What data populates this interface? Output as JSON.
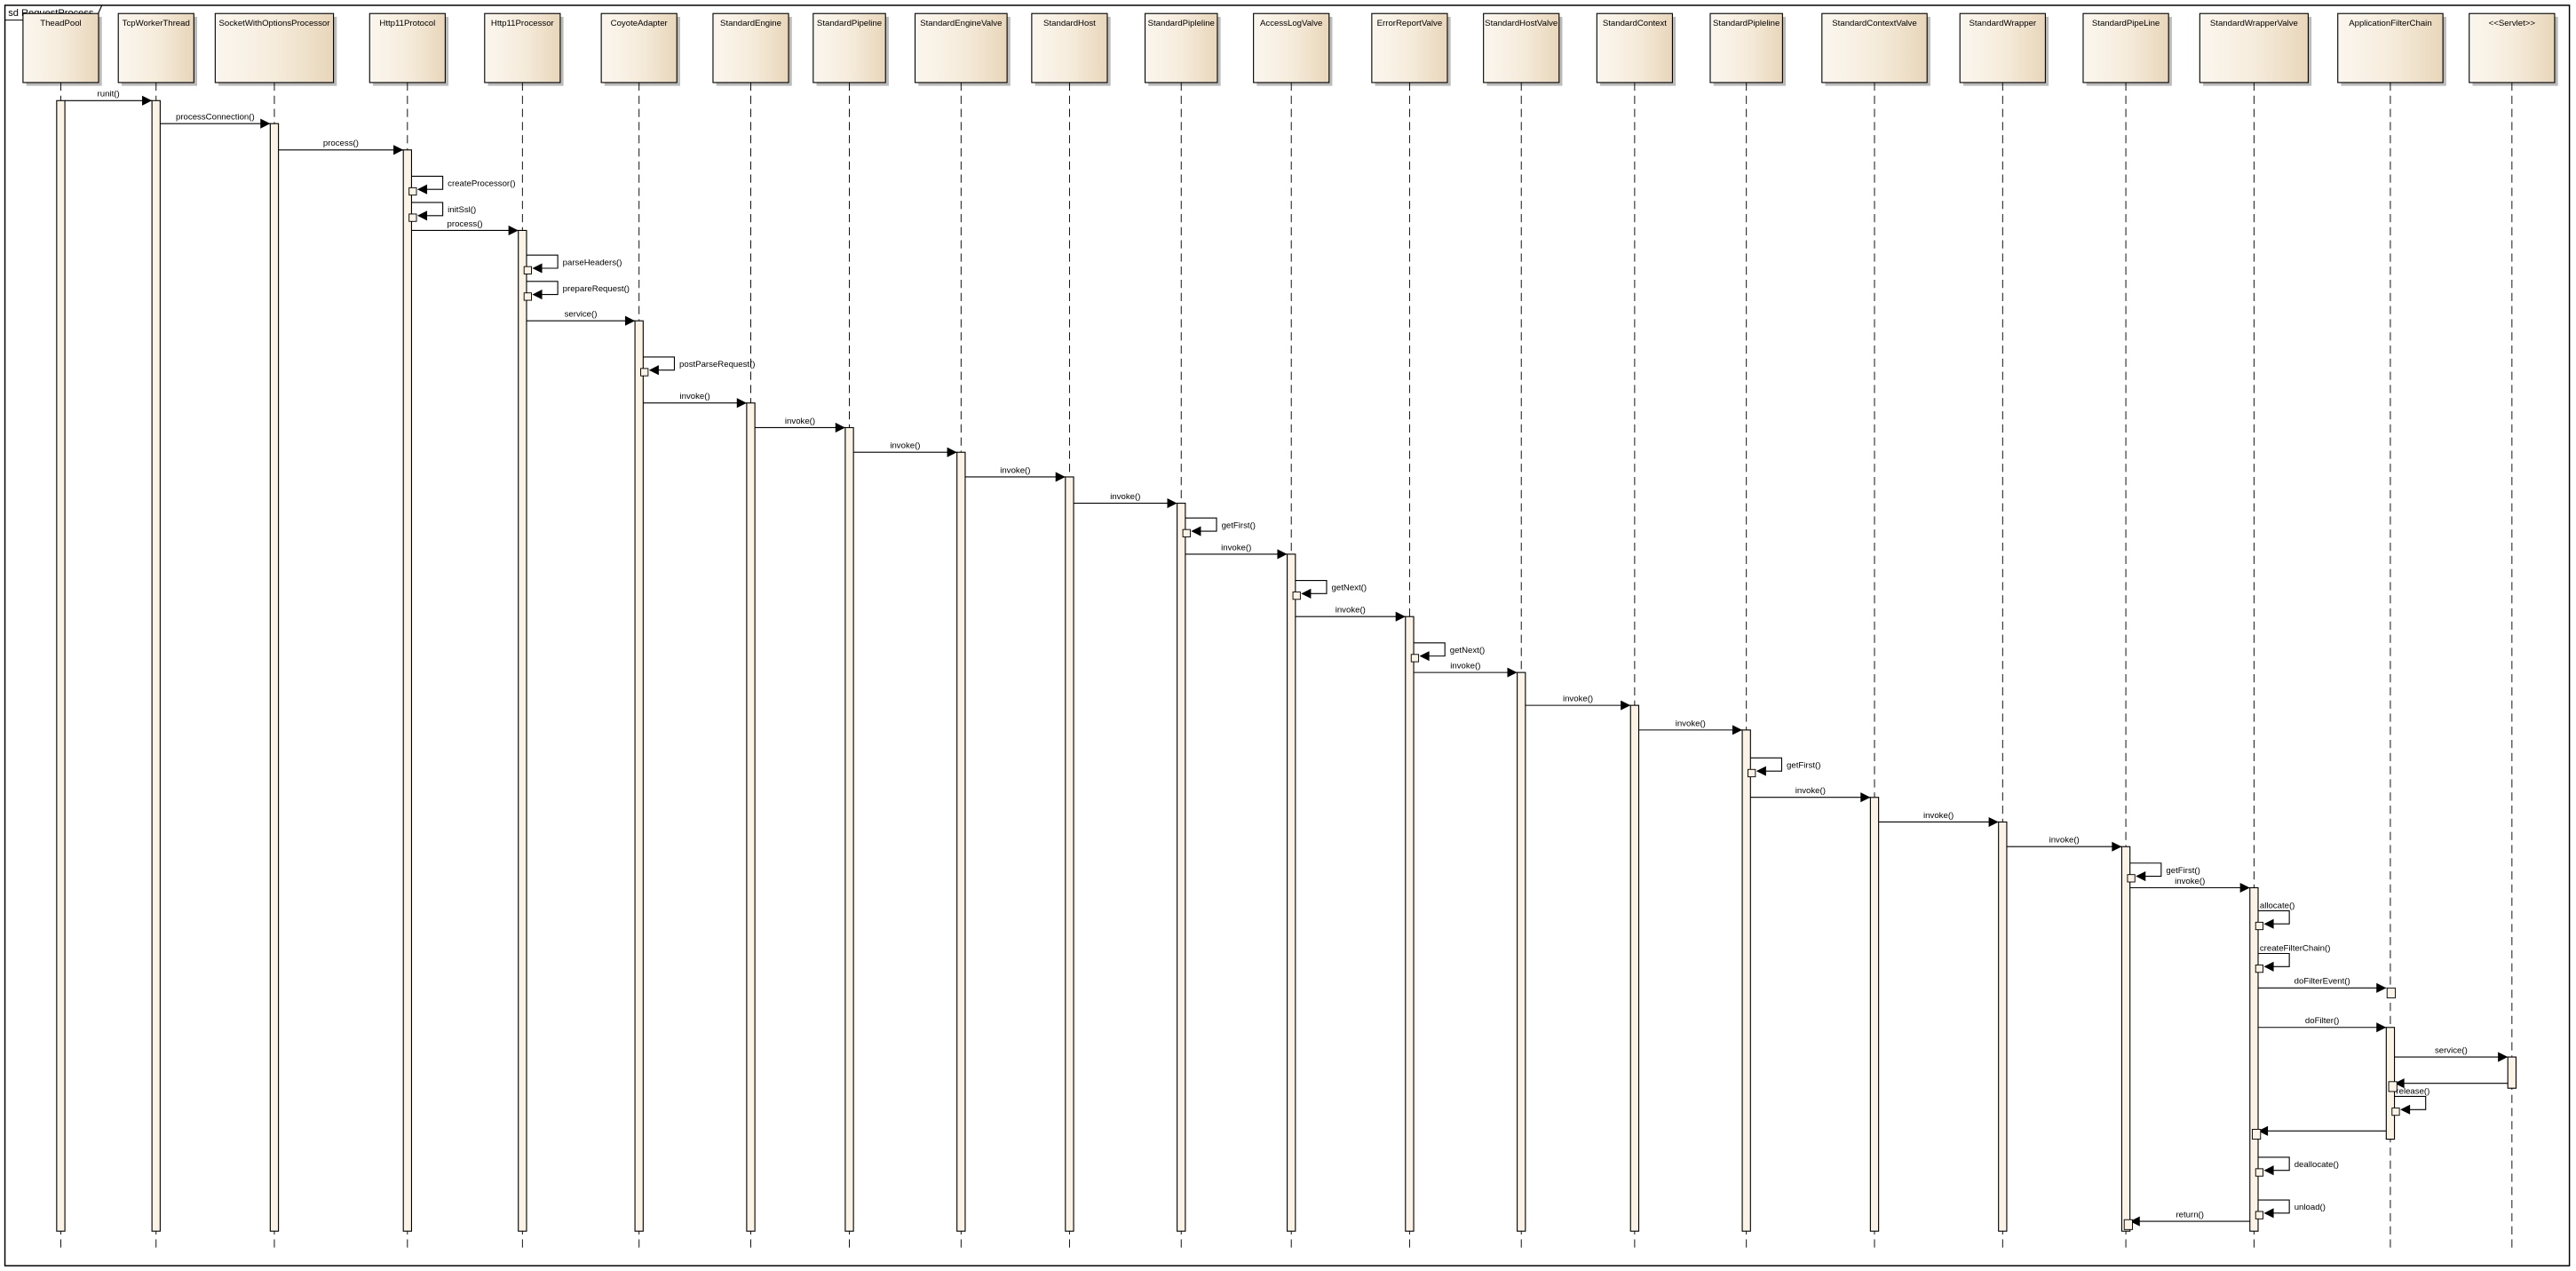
{
  "frame": {
    "title": "sd RequestProcess"
  },
  "colors": {
    "box_fill_light": "#fbf6ee",
    "box_fill_dark": "#ecdcc2",
    "activation_fill": "#fbf3e6",
    "line": "#000000"
  },
  "participants": [
    "TheadPool",
    "TcpWorkerThread",
    "SocketWithOptionsProcessor",
    "Http11Protocol",
    "Http11Processor",
    "CoyoteAdapter",
    "StandardEngine",
    "StandardPipeline",
    "StandardEngineValve",
    "StandardHost",
    "StandardPipleline",
    "AccessLogValve",
    "ErrorReportValve",
    "StandardHostValve",
    "StandardContext",
    "StandardPipleline",
    "StandardContextValve",
    "StandardWrapper",
    "StandardPipeLine",
    "StandardWrapperValve",
    "ApplicationFilterChain",
    "<<Servlet>>"
  ],
  "messages": [
    {
      "from": 0,
      "to": 1,
      "label": "runit()"
    },
    {
      "from": 1,
      "to": 2,
      "label": "processConnection()"
    },
    {
      "from": 2,
      "to": 3,
      "label": "process()"
    },
    {
      "from": 3,
      "to": 3,
      "label": "createProcessor()"
    },
    {
      "from": 3,
      "to": 3,
      "label": "initSsl()"
    },
    {
      "from": 3,
      "to": 4,
      "label": "process()"
    },
    {
      "from": 4,
      "to": 4,
      "label": "parseHeaders()"
    },
    {
      "from": 4,
      "to": 4,
      "label": "prepareRequest()"
    },
    {
      "from": 4,
      "to": 5,
      "label": "service()"
    },
    {
      "from": 5,
      "to": 5,
      "label": "postParseRequest()"
    },
    {
      "from": 5,
      "to": 6,
      "label": "invoke()"
    },
    {
      "from": 6,
      "to": 7,
      "label": "invoke()"
    },
    {
      "from": 7,
      "to": 8,
      "label": "invoke()"
    },
    {
      "from": 8,
      "to": 9,
      "label": "invoke()"
    },
    {
      "from": 9,
      "to": 10,
      "label": "invoke()"
    },
    {
      "from": 10,
      "to": 10,
      "label": "getFirst()"
    },
    {
      "from": 10,
      "to": 11,
      "label": "invoke()"
    },
    {
      "from": 11,
      "to": 11,
      "label": "getNext()"
    },
    {
      "from": 11,
      "to": 12,
      "label": "invoke()"
    },
    {
      "from": 12,
      "to": 12,
      "label": "getNext()"
    },
    {
      "from": 12,
      "to": 13,
      "label": "invoke()"
    },
    {
      "from": 13,
      "to": 14,
      "label": "invoke()"
    },
    {
      "from": 14,
      "to": 15,
      "label": "invoke()"
    },
    {
      "from": 15,
      "to": 15,
      "label": "getFirst()"
    },
    {
      "from": 15,
      "to": 16,
      "label": "invoke()"
    },
    {
      "from": 16,
      "to": 17,
      "label": "invoke()"
    },
    {
      "from": 17,
      "to": 18,
      "label": "invoke()"
    },
    {
      "from": 18,
      "to": 18,
      "label": "getFirst()"
    },
    {
      "from": 18,
      "to": 19,
      "label": "invoke()"
    },
    {
      "from": 19,
      "to": 19,
      "label": "allocate()"
    },
    {
      "from": 19,
      "to": 19,
      "label": "createFilterChain()"
    },
    {
      "from": 19,
      "to": 20,
      "label": "doFilterEvent()"
    },
    {
      "from": 19,
      "to": 20,
      "label": "doFilter()"
    },
    {
      "from": 20,
      "to": 21,
      "label": "service()"
    },
    {
      "from": 21,
      "to": 20,
      "label": ""
    },
    {
      "from": 20,
      "to": 20,
      "label": "release()"
    },
    {
      "from": 20,
      "to": 19,
      "label": ""
    },
    {
      "from": 19,
      "to": 19,
      "label": "deallocate()"
    },
    {
      "from": 19,
      "to": 19,
      "label": "unload()"
    },
    {
      "from": 19,
      "to": 18,
      "label": "return()"
    }
  ]
}
